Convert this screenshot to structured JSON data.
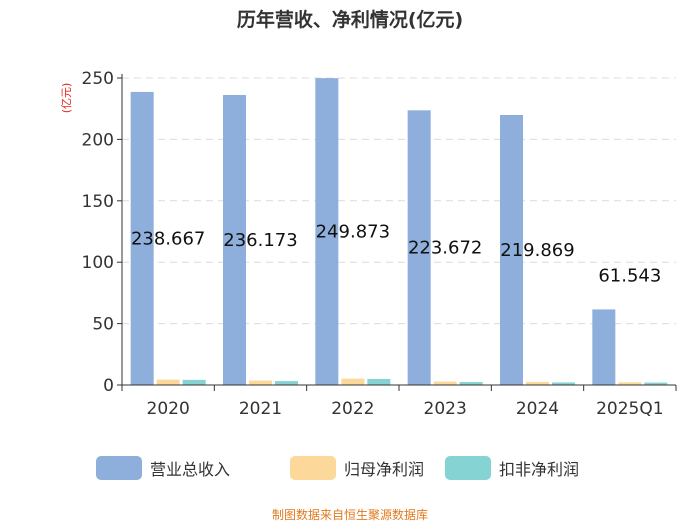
{
  "chart_data": {
    "type": "bar",
    "title": "历年营收、净利情况(亿元)",
    "ylabel": "(亿元)",
    "categories": [
      "2020",
      "2021",
      "2022",
      "2023",
      "2024",
      "2025Q1"
    ],
    "series": [
      {
        "name": "营业总收入",
        "color": "#8eaedc",
        "values": [
          238.667,
          236.173,
          249.873,
          223.672,
          219.869,
          61.543
        ]
      },
      {
        "name": "归母净利润",
        "color": "#fcd89a",
        "values": [
          4.4,
          3.6,
          5.2,
          2.8,
          2.5,
          2.2
        ]
      },
      {
        "name": "扣非净利润",
        "color": "#85d4d3",
        "values": [
          4.2,
          3.2,
          4.9,
          2.4,
          2.1,
          2.0
        ]
      }
    ],
    "data_labels": [
      "238.667",
      "236.173",
      "249.873",
      "223.672",
      "219.869",
      "61.543"
    ],
    "ylim": [
      0,
      250
    ],
    "yticks": [
      0,
      50,
      100,
      150,
      200,
      250
    ],
    "grid": true,
    "legend_position": "bottom"
  },
  "source": "制图数据来自恒生聚源数据库"
}
